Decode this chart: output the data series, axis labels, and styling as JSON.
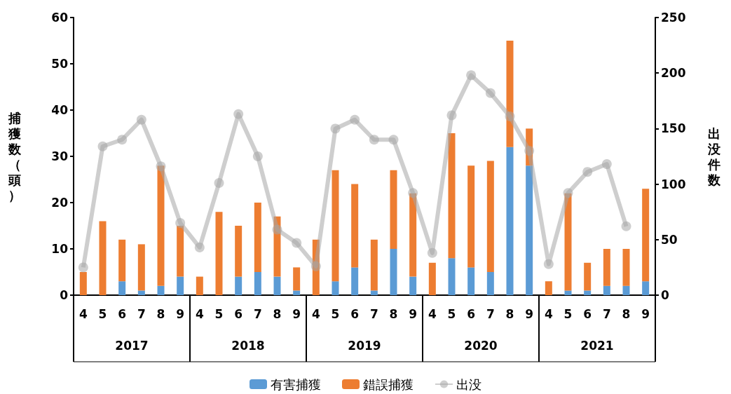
{
  "chart_data": {
    "type": "bar",
    "stacked": true,
    "ylabel": "捕獲数（頭）",
    "y2label": "出没件数",
    "categories": [
      "4",
      "5",
      "6",
      "7",
      "8",
      "9",
      "4",
      "5",
      "6",
      "7",
      "8",
      "9",
      "4",
      "5",
      "6",
      "7",
      "8",
      "9",
      "4",
      "5",
      "6",
      "7",
      "8",
      "9",
      "4",
      "5",
      "6",
      "7",
      "8",
      "9"
    ],
    "annotations": [
      "2017",
      "2018",
      "2019",
      "2020",
      "2021"
    ],
    "series": [
      {
        "name": "有害捕獲",
        "color": "#5b9bd5",
        "values": [
          0,
          0,
          3,
          1,
          2,
          4,
          0,
          0,
          4,
          5,
          4,
          1,
          0,
          3,
          6,
          1,
          10,
          4,
          0,
          8,
          6,
          5,
          32,
          28,
          0,
          1,
          1,
          2,
          2,
          3
        ]
      },
      {
        "name": "錯誤捕獲",
        "color": "#ed7d31",
        "values": [
          5,
          16,
          9,
          10,
          26,
          11,
          4,
          18,
          11,
          15,
          13,
          5,
          12,
          24,
          18,
          11,
          17,
          18,
          7,
          27,
          22,
          24,
          23,
          8,
          3,
          21,
          6,
          8,
          8,
          20
        ]
      },
      {
        "name": "出没",
        "type": "line",
        "axis": "y2",
        "color": "#a5a5a5",
        "marker": "circle",
        "values": [
          25,
          134,
          140,
          158,
          116,
          65,
          43,
          101,
          163,
          125,
          59,
          47,
          26,
          150,
          158,
          140,
          140,
          92,
          38,
          162,
          198,
          182,
          161,
          130,
          28,
          92,
          111,
          118,
          62,
          null
        ]
      }
    ],
    "ylim": [
      0,
      60
    ],
    "yticks": [
      0,
      10,
      20,
      30,
      40,
      50,
      60
    ],
    "y2lim": [
      0,
      250
    ],
    "y2ticks": [
      0,
      50,
      100,
      150,
      200,
      250
    ],
    "grid": false,
    "legend": "bottom"
  }
}
